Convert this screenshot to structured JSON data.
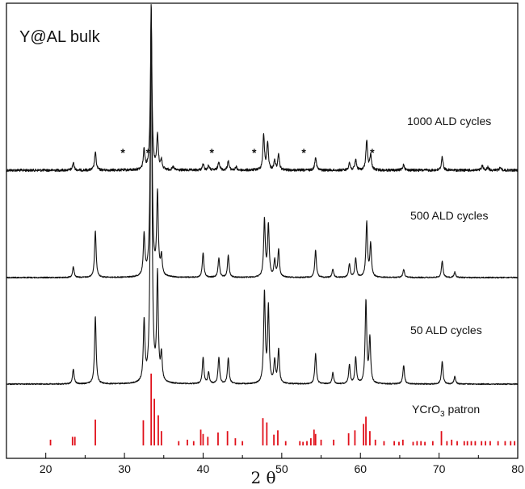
{
  "chart_data": {
    "type": "line",
    "title": "Y@AL bulk",
    "xlabel": "2 θ",
    "ylabel": "",
    "xlim": [
      15,
      80
    ],
    "xticks": [
      20,
      30,
      40,
      50,
      60,
      70,
      80
    ],
    "yticks_shown": false,
    "colors": {
      "pattern": "#111111",
      "reference": "#e0101a"
    },
    "series": [
      {
        "name": "1000 ALD cycles",
        "peaks": [
          [
            23.5,
            0.05
          ],
          [
            26.3,
            0.12
          ],
          [
            32.5,
            0.13
          ],
          [
            33.4,
            1.0
          ],
          [
            34.2,
            0.22
          ],
          [
            34.7,
            0.06
          ],
          [
            36.2,
            0.02
          ],
          [
            40.0,
            0.04
          ],
          [
            40.7,
            0.03
          ],
          [
            42.0,
            0.06
          ],
          [
            43.2,
            0.06
          ],
          [
            44.2,
            0.02
          ],
          [
            47.7,
            0.23
          ],
          [
            48.2,
            0.18
          ],
          [
            49.1,
            0.06
          ],
          [
            49.6,
            0.1
          ],
          [
            54.3,
            0.09
          ],
          [
            58.6,
            0.05
          ],
          [
            59.4,
            0.07
          ],
          [
            60.8,
            0.2
          ],
          [
            61.3,
            0.1
          ],
          [
            65.5,
            0.04
          ],
          [
            70.4,
            0.09
          ],
          [
            75.5,
            0.03
          ],
          [
            76.2,
            0.02
          ],
          [
            77.8,
            0.02
          ]
        ],
        "annotations": [
          {
            "x": 29.8,
            "text": "*"
          },
          {
            "x": 33.0,
            "text": "*"
          },
          {
            "x": 41.1,
            "text": "*"
          },
          {
            "x": 46.5,
            "text": "*"
          },
          {
            "x": 52.8,
            "text": "*"
          },
          {
            "x": 61.5,
            "text": "*"
          }
        ]
      },
      {
        "name": "500 ALD cycles",
        "peaks": [
          [
            23.5,
            0.04
          ],
          [
            26.3,
            0.17
          ],
          [
            32.5,
            0.15
          ],
          [
            33.4,
            1.0
          ],
          [
            34.2,
            0.3
          ],
          [
            34.7,
            0.07
          ],
          [
            40.0,
            0.09
          ],
          [
            42.0,
            0.07
          ],
          [
            43.2,
            0.08
          ],
          [
            47.8,
            0.21
          ],
          [
            48.3,
            0.19
          ],
          [
            49.1,
            0.06
          ],
          [
            49.6,
            0.1
          ],
          [
            54.3,
            0.1
          ],
          [
            56.5,
            0.03
          ],
          [
            58.6,
            0.05
          ],
          [
            59.4,
            0.07
          ],
          [
            60.8,
            0.2
          ],
          [
            61.3,
            0.12
          ],
          [
            65.5,
            0.03
          ],
          [
            70.4,
            0.06
          ],
          [
            72.0,
            0.02
          ]
        ],
        "annotations": []
      },
      {
        "name": "50 ALD cycles",
        "peaks": [
          [
            23.5,
            0.04
          ],
          [
            26.3,
            0.18
          ],
          [
            32.5,
            0.16
          ],
          [
            33.4,
            1.0
          ],
          [
            34.2,
            0.28
          ],
          [
            34.7,
            0.07
          ],
          [
            40.0,
            0.07
          ],
          [
            40.7,
            0.03
          ],
          [
            42.0,
            0.07
          ],
          [
            43.2,
            0.07
          ],
          [
            47.8,
            0.24
          ],
          [
            48.3,
            0.2
          ],
          [
            49.1,
            0.06
          ],
          [
            49.6,
            0.09
          ],
          [
            54.3,
            0.08
          ],
          [
            56.5,
            0.03
          ],
          [
            58.6,
            0.05
          ],
          [
            59.4,
            0.07
          ],
          [
            60.7,
            0.22
          ],
          [
            61.2,
            0.12
          ],
          [
            65.5,
            0.05
          ],
          [
            70.4,
            0.06
          ],
          [
            72.0,
            0.02
          ]
        ],
        "annotations": []
      }
    ],
    "reference": {
      "label_main": "YCrO",
      "label_sub": "3",
      "label_suffix": " patron",
      "lines": [
        [
          20.6,
          0.08
        ],
        [
          23.4,
          0.12
        ],
        [
          23.7,
          0.12
        ],
        [
          26.3,
          0.36
        ],
        [
          32.4,
          0.35
        ],
        [
          33.4,
          1.0
        ],
        [
          33.8,
          0.65
        ],
        [
          34.3,
          0.42
        ],
        [
          34.7,
          0.2
        ],
        [
          36.9,
          0.06
        ],
        [
          38.0,
          0.08
        ],
        [
          38.8,
          0.06
        ],
        [
          39.7,
          0.22
        ],
        [
          40.0,
          0.16
        ],
        [
          40.6,
          0.12
        ],
        [
          41.9,
          0.18
        ],
        [
          43.1,
          0.2
        ],
        [
          44.1,
          0.1
        ],
        [
          45.0,
          0.06
        ],
        [
          47.6,
          0.38
        ],
        [
          48.1,
          0.32
        ],
        [
          49.0,
          0.15
        ],
        [
          49.5,
          0.21
        ],
        [
          50.5,
          0.06
        ],
        [
          52.3,
          0.06
        ],
        [
          52.7,
          0.05
        ],
        [
          53.2,
          0.06
        ],
        [
          53.7,
          0.1
        ],
        [
          54.1,
          0.22
        ],
        [
          54.3,
          0.16
        ],
        [
          55.0,
          0.08
        ],
        [
          56.6,
          0.08
        ],
        [
          58.5,
          0.17
        ],
        [
          59.3,
          0.21
        ],
        [
          60.4,
          0.3
        ],
        [
          60.7,
          0.4
        ],
        [
          61.2,
          0.2
        ],
        [
          61.9,
          0.08
        ],
        [
          63.0,
          0.06
        ],
        [
          64.3,
          0.06
        ],
        [
          64.9,
          0.05
        ],
        [
          65.4,
          0.08
        ],
        [
          66.7,
          0.05
        ],
        [
          67.2,
          0.06
        ],
        [
          67.7,
          0.06
        ],
        [
          68.2,
          0.05
        ],
        [
          69.2,
          0.06
        ],
        [
          70.3,
          0.2
        ],
        [
          71.0,
          0.06
        ],
        [
          71.6,
          0.08
        ],
        [
          72.3,
          0.06
        ],
        [
          73.2,
          0.06
        ],
        [
          73.6,
          0.06
        ],
        [
          74.1,
          0.06
        ],
        [
          74.6,
          0.06
        ],
        [
          75.4,
          0.06
        ],
        [
          75.9,
          0.06
        ],
        [
          76.5,
          0.06
        ],
        [
          77.5,
          0.06
        ],
        [
          78.4,
          0.06
        ],
        [
          79.1,
          0.06
        ],
        [
          79.6,
          0.06
        ]
      ]
    }
  }
}
